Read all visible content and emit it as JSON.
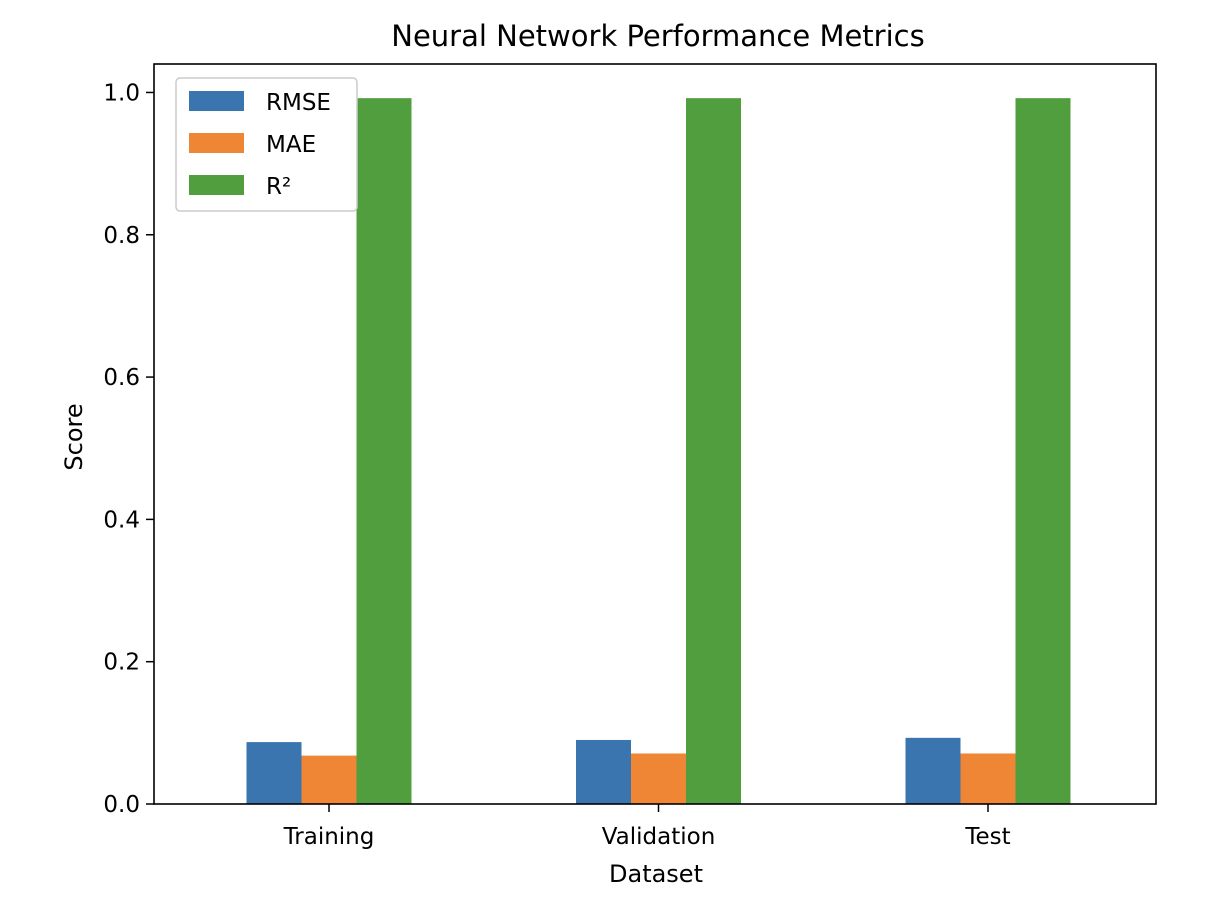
{
  "chart_data": {
    "type": "bar",
    "title": "Neural Network Performance Metrics",
    "xlabel": "Dataset",
    "ylabel": "Score",
    "categories": [
      "Training",
      "Validation",
      "Test"
    ],
    "series": [
      {
        "name": "RMSE",
        "color": "#3a75b0",
        "values": [
          0.087,
          0.09,
          0.093
        ]
      },
      {
        "name": "MAE",
        "color": "#ef8636",
        "values": [
          0.068,
          0.071,
          0.071
        ]
      },
      {
        "name": "R²",
        "color": "#519e3e",
        "values": [
          0.992,
          0.992,
          0.992
        ]
      }
    ],
    "ylim": [
      0,
      1.04
    ],
    "yticks": [
      "0.0",
      "0.2",
      "0.4",
      "0.6",
      "0.8",
      "1.0"
    ],
    "grid": false,
    "legend_position": "top-left"
  }
}
